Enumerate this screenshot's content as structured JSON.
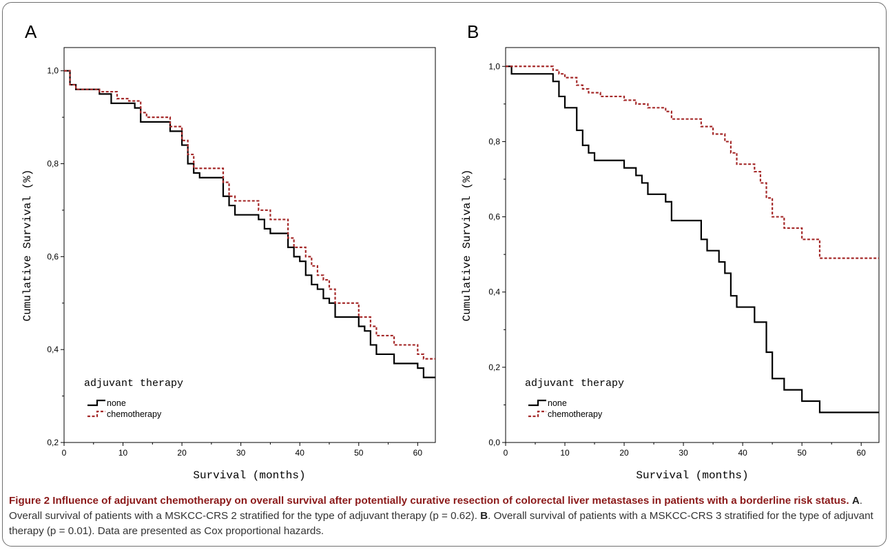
{
  "colors": {
    "none": "#000000",
    "chemotherapy": "#a52a2a",
    "caption_title": "#8b1a1a"
  },
  "chart_data": [
    {
      "type": "line",
      "panel_label": "A",
      "xlabel": "Survival (months)",
      "ylabel": "Cumulative Survival (%)",
      "xlim": [
        0,
        63
      ],
      "ylim": [
        0.2,
        1.05
      ],
      "x_ticks": [
        0,
        10,
        20,
        30,
        40,
        50,
        60
      ],
      "y_ticks": [
        0.2,
        0.4,
        0.6,
        0.8,
        1.0
      ],
      "y_tick_labels": [
        "0,2",
        "0,4",
        "0,6",
        "0,8",
        "1,0"
      ],
      "step": true,
      "grid": false,
      "legend": {
        "title": "adjuvant therapy",
        "position": "bottom-left"
      },
      "series": [
        {
          "name": "none",
          "style": "solid",
          "x": [
            0,
            1,
            2,
            6,
            8,
            12,
            13,
            18,
            20,
            21,
            22,
            23,
            27,
            28,
            29,
            33,
            34,
            35,
            38,
            39,
            40,
            41,
            42,
            43,
            44,
            45,
            46,
            48,
            50,
            51,
            52,
            53,
            56,
            60,
            61,
            63
          ],
          "y": [
            1.0,
            0.97,
            0.96,
            0.95,
            0.93,
            0.92,
            0.89,
            0.87,
            0.84,
            0.8,
            0.78,
            0.77,
            0.73,
            0.71,
            0.69,
            0.68,
            0.66,
            0.65,
            0.62,
            0.6,
            0.59,
            0.56,
            0.54,
            0.53,
            0.51,
            0.5,
            0.47,
            0.47,
            0.45,
            0.44,
            0.41,
            0.39,
            0.37,
            0.36,
            0.34,
            0.34
          ]
        },
        {
          "name": "chemotherapy",
          "style": "dashed",
          "x": [
            0,
            1,
            2,
            6,
            9,
            11,
            13,
            14,
            18,
            20,
            21,
            22,
            24,
            27,
            28,
            29,
            33,
            35,
            38,
            39,
            41,
            42,
            43,
            44,
            45,
            46,
            50,
            52,
            53,
            56,
            60,
            61,
            63
          ],
          "y": [
            1.0,
            0.97,
            0.96,
            0.955,
            0.94,
            0.935,
            0.91,
            0.9,
            0.88,
            0.85,
            0.82,
            0.79,
            0.79,
            0.76,
            0.73,
            0.72,
            0.7,
            0.68,
            0.64,
            0.62,
            0.6,
            0.58,
            0.56,
            0.55,
            0.53,
            0.5,
            0.47,
            0.45,
            0.43,
            0.41,
            0.39,
            0.38,
            0.38
          ]
        }
      ]
    },
    {
      "type": "line",
      "panel_label": "B",
      "xlabel": "Survival (months)",
      "ylabel": "Cumulative Survival (%)",
      "xlim": [
        0,
        63
      ],
      "ylim": [
        0.0,
        1.05
      ],
      "x_ticks": [
        0,
        10,
        20,
        30,
        40,
        50,
        60
      ],
      "y_ticks": [
        0.0,
        0.2,
        0.4,
        0.6,
        0.8,
        1.0
      ],
      "y_tick_labels": [
        "0,0",
        "0,2",
        "0,4",
        "0,6",
        "0,8",
        "1,0"
      ],
      "step": true,
      "grid": false,
      "legend": {
        "title": "adjuvant therapy",
        "position": "bottom-left"
      },
      "series": [
        {
          "name": "none",
          "style": "solid",
          "x": [
            0,
            1,
            8,
            9,
            10,
            12,
            13,
            14,
            15,
            20,
            22,
            23,
            24,
            27,
            28,
            33,
            34,
            36,
            37,
            38,
            39,
            42,
            44,
            45,
            47,
            50,
            53,
            63
          ],
          "y": [
            1.0,
            0.98,
            0.96,
            0.92,
            0.89,
            0.83,
            0.79,
            0.77,
            0.75,
            0.73,
            0.71,
            0.69,
            0.66,
            0.64,
            0.59,
            0.54,
            0.51,
            0.48,
            0.45,
            0.39,
            0.36,
            0.32,
            0.24,
            0.17,
            0.14,
            0.11,
            0.08,
            0.08
          ]
        },
        {
          "name": "chemotherapy",
          "style": "dashed",
          "x": [
            0,
            8,
            9,
            10,
            12,
            13,
            14,
            16,
            20,
            22,
            24,
            27,
            28,
            33,
            35,
            37,
            38,
            39,
            42,
            43,
            44,
            45,
            47,
            50,
            53,
            63
          ],
          "y": [
            1.0,
            0.99,
            0.98,
            0.97,
            0.95,
            0.94,
            0.93,
            0.92,
            0.91,
            0.9,
            0.89,
            0.88,
            0.86,
            0.84,
            0.82,
            0.8,
            0.77,
            0.74,
            0.72,
            0.69,
            0.65,
            0.6,
            0.57,
            0.54,
            0.49,
            0.49
          ]
        }
      ]
    }
  ],
  "caption": {
    "title": "Figure 2 Influence of adjuvant chemotherapy on overall survival after potentially curative resection of colorectal liver metastases in patients with a borderline risk status.",
    "a_letter": "A",
    "a_text": ". Overall survival of patients with a MSKCC-CRS 2 stratified for the type of adjuvant therapy (p = 0.62). ",
    "b_letter": "B",
    "b_text": ". Overall survival of patients with a MSKCC-CRS 3 stratified for the type of adjuvant therapy (p = 0.01). Data are presented as Cox proportional hazards."
  }
}
